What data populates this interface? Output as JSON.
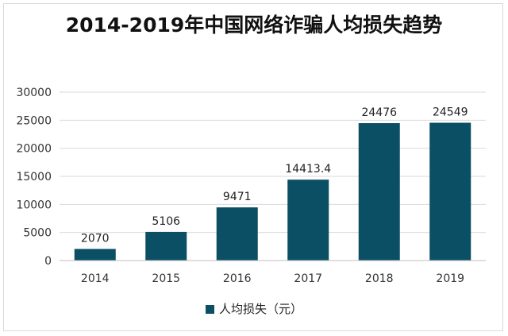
{
  "chart_data": {
    "type": "bar",
    "title": "2014-2019年中国网络诈骗人均损失趋势",
    "categories": [
      "2014",
      "2015",
      "2016",
      "2017",
      "2018",
      "2019"
    ],
    "series": [
      {
        "name": "人均损失（元）",
        "values": [
          2070,
          5106,
          9471,
          14413.4,
          24476,
          24549
        ],
        "labels": [
          "2070",
          "5106",
          "9471",
          "14413.4",
          "24476",
          "24549"
        ],
        "color": "#0b4f64"
      }
    ],
    "ylim": [
      0,
      30000
    ],
    "yticks": [
      "0",
      "5000",
      "10000",
      "15000",
      "20000",
      "25000",
      "30000"
    ],
    "grid": true,
    "legend": "bottom"
  }
}
